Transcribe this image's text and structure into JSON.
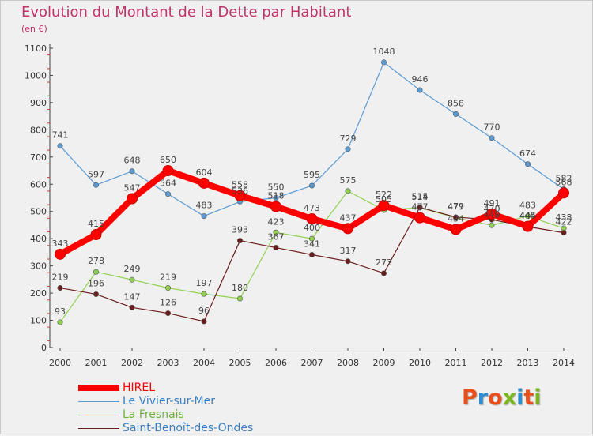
{
  "header": {
    "title": "Evolution du Montant de la Dette par Habitant",
    "unit": "(en €)"
  },
  "logo": {
    "text": "Proxiti",
    "colors": [
      "#e8501e",
      "#2f8ccf",
      "#e8501e",
      "#7ab51d",
      "#2f8ccf",
      "#e8501e",
      "#7ab51d"
    ]
  },
  "chart_data": {
    "type": "line",
    "title": "Evolution du Montant de la Dette par Habitant",
    "ylabel": "(en €)",
    "xlabel": "",
    "ylim": [
      0,
      1100
    ],
    "yticks": [
      0,
      100,
      200,
      300,
      400,
      500,
      600,
      700,
      800,
      900,
      1000,
      1100
    ],
    "grid": false,
    "legend_position": "bottom-left",
    "x": [
      "2000",
      "2001",
      "2002",
      "2003",
      "2004",
      "2005",
      "2006",
      "2007",
      "2008",
      "2009",
      "2010",
      "2011",
      "2012",
      "2013",
      "2014"
    ],
    "series": [
      {
        "name": "HIREL",
        "color": "#ff0000",
        "emphasis": true,
        "values": [
          343,
          415,
          547,
          650,
          604,
          558,
          518,
          473,
          437,
          522,
          477,
          434,
          491,
          445,
          568
        ]
      },
      {
        "name": "Le Vivier-sur-Mer",
        "color": "#5b9bd5",
        "values": [
          741,
          597,
          648,
          564,
          483,
          536,
          550,
          595,
          729,
          1048,
          946,
          858,
          770,
          674,
          582
        ]
      },
      {
        "name": "La Fresnais",
        "color": "#8fd14f",
        "values": [
          93,
          278,
          249,
          219,
          197,
          180,
          423,
          400,
          575,
          505,
          514,
          477,
          449,
          483,
          438
        ]
      },
      {
        "name": "Saint-Benoît-des-Ondes",
        "color": "#6b1d1d",
        "values": [
          219,
          196,
          147,
          126,
          96,
          393,
          367,
          341,
          317,
          273,
          515,
          479,
          470,
          444,
          422
        ]
      }
    ]
  }
}
